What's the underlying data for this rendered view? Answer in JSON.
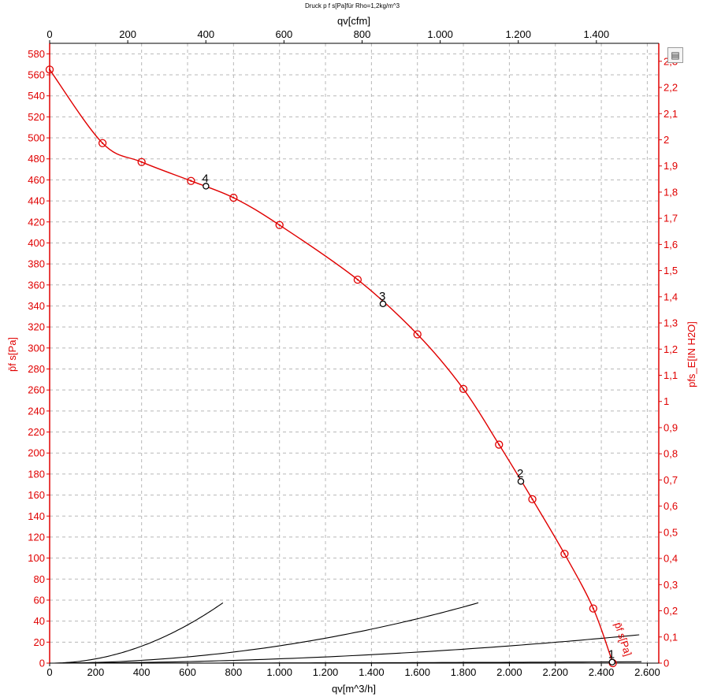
{
  "chart_data": {
    "type": "line",
    "title": "Druck p f s[Pa]für Rho=1,2kg/m^3",
    "xlabel": "qv[m^3/h]",
    "x2label": "qv[cfm]",
    "ylabel": "p̄f s[Pa]",
    "y2label": "pfs_E[IN H2O]",
    "xlim": [
      0,
      2650
    ],
    "ylim": [
      0,
      590
    ],
    "x_ticks": [
      0,
      200,
      400,
      600,
      800,
      1000,
      1200,
      1400,
      1600,
      1800,
      2000,
      2200,
      2400,
      2600
    ],
    "x_tick_labels": [
      "0",
      "200",
      "400",
      "600",
      "800",
      "1.000",
      "1.200",
      "1.400",
      "1.600",
      "1.800",
      "2.000",
      "2.200",
      "2.400",
      "2.600"
    ],
    "x2_ticks": [
      0,
      200,
      400,
      600,
      800,
      1000,
      1200,
      1400
    ],
    "x2_tick_labels": [
      "0",
      "200",
      "400",
      "600",
      "800",
      "1.000",
      "1.200",
      "1.400"
    ],
    "y_ticks": [
      0,
      20,
      40,
      60,
      80,
      100,
      120,
      140,
      160,
      180,
      200,
      220,
      240,
      260,
      280,
      300,
      320,
      340,
      360,
      380,
      400,
      420,
      440,
      460,
      480,
      500,
      520,
      540,
      560,
      580
    ],
    "y2_ticks": [
      0,
      0.1,
      0.2,
      0.3,
      0.4,
      0.5,
      0.6,
      0.7,
      0.8,
      0.9,
      1,
      1.1,
      1.2,
      1.3,
      1.4,
      1.5,
      1.6,
      1.7,
      1.8,
      1.9,
      2,
      2.1,
      2.2,
      2.3
    ],
    "y2_tick_labels": [
      "0",
      "0,1",
      "0,2",
      "0,3",
      "0,4",
      "0,5",
      "0,6",
      "0,7",
      "0,8",
      "0,9",
      "1",
      "1,1",
      "1,2",
      "1,3",
      "1,4",
      "1,5",
      "1,6",
      "1,7",
      "1,8",
      "1,9",
      "2",
      "2,1",
      "2,2",
      "2,3"
    ],
    "grid": true,
    "fan_curve": {
      "name": "p̄f s[Pa]",
      "color": "#e00000",
      "x": [
        0,
        230,
        400,
        615,
        800,
        1000,
        1340,
        1600,
        1800,
        1955,
        2100,
        2240,
        2365,
        2450
      ],
      "y": [
        565,
        495,
        477,
        459,
        443,
        417,
        365,
        313,
        261,
        208,
        156,
        104,
        52,
        0
      ]
    },
    "system_curves": [
      {
        "k": 0.000101,
        "xmax": 754
      },
      {
        "k": 1.65e-05,
        "xmax": 1865
      },
      {
        "k": 4.1e-06,
        "xmax": 2565
      },
      {
        "k": 2e-07,
        "xmax": 2575
      }
    ],
    "operating_points": [
      {
        "label": "1",
        "x": 2447,
        "y": 1
      },
      {
        "label": "2",
        "x": 2050,
        "y": 173
      },
      {
        "label": "3",
        "x": 1450,
        "y": 342
      },
      {
        "label": "4",
        "x": 680,
        "y": 454
      }
    ],
    "annotations": [
      "p̄f s[Pa]"
    ]
  },
  "toolbar": {
    "menu_icon": "context-menu-icon",
    "menu_glyph": "▤"
  }
}
